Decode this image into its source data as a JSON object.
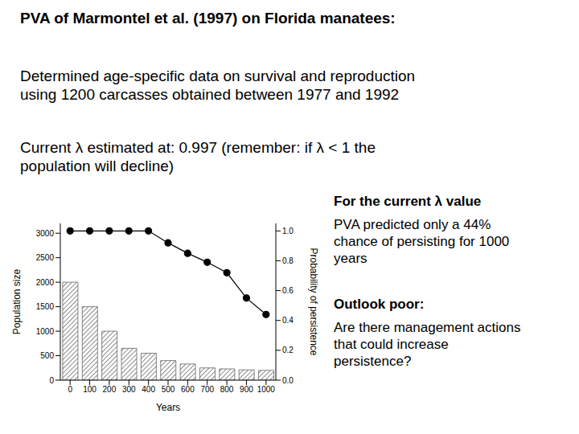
{
  "title": "PVA of Marmontel et al. (1997) on Florida manatees:",
  "paragraphs": [
    [
      "Determined age-specific data on survival and reproduction",
      "using 1200 carcasses obtained between 1977 and 1992"
    ],
    [
      "Current λ estimated at: 0.997 (remember: if λ < 1 the",
      "population will decline)"
    ]
  ],
  "notes": [
    {
      "heading": "For the current λ value",
      "lines": [
        "PVA predicted only a 44%",
        "chance of persisting for 1000",
        "years"
      ]
    },
    {
      "heading": "Outlook poor:",
      "lines": [
        "Are there management actions",
        "that could increase",
        "persistence?"
      ]
    }
  ],
  "chart_data": {
    "type": "bar",
    "x_label": "Years",
    "y_label": "Population size",
    "y2_label": "Probability of persistence",
    "categories": [
      0,
      100,
      200,
      300,
      400,
      500,
      600,
      700,
      800,
      900,
      1000
    ],
    "series": [
      {
        "name": "Population size",
        "type": "bar",
        "color": "#666666",
        "values": [
          2000,
          1500,
          1000,
          650,
          550,
          400,
          330,
          250,
          230,
          210,
          200
        ]
      },
      {
        "name": "Probability of persistence",
        "type": "line",
        "axis": "y2",
        "color": "#000000",
        "marker": "circle",
        "values": [
          1.0,
          1.0,
          1.0,
          1.0,
          1.0,
          0.92,
          0.85,
          0.79,
          0.72,
          0.55,
          0.44
        ]
      }
    ],
    "ylim": [
      0,
      3200
    ],
    "yticks": [
      0,
      500,
      1000,
      1500,
      2000,
      2500,
      3000
    ],
    "y2lim": [
      0,
      1.05
    ],
    "y2ticks": [
      {
        "value": 0,
        "label": "0.0"
      },
      {
        "value": 0.2,
        "label": "0.2"
      },
      {
        "value": 0.4,
        "label": "0.4"
      },
      {
        "value": 0.6,
        "label": "0.6"
      },
      {
        "value": 0.8,
        "label": "0.8"
      },
      {
        "value": 1,
        "label": "1.0"
      }
    ],
    "grid": false,
    "legend": "none"
  }
}
